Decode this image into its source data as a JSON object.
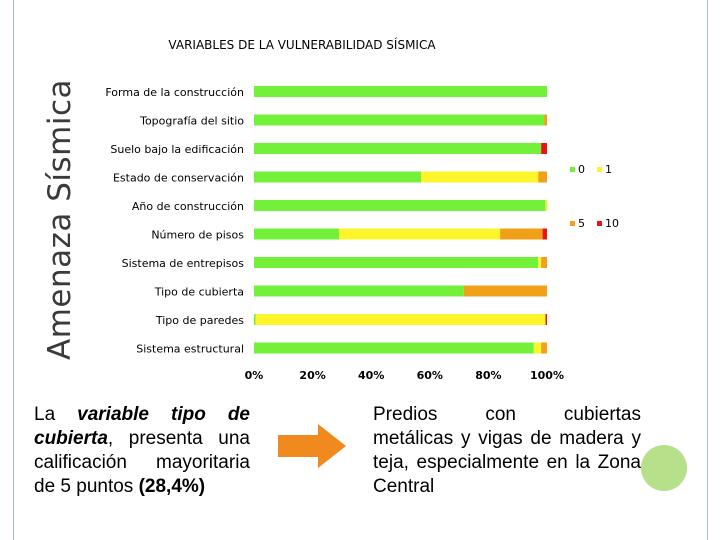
{
  "side_title": "Amenaza Sísmica",
  "left_note": {
    "p1": "La ",
    "p2": "variable tipo de cubierta",
    "p3": ", presenta una calificación mayoritaria de 5 puntos ",
    "p4": "(28,4%)"
  },
  "right_note": "Predios con cubiertas metálicas y vigas de madera y teja, especialmente en la Zona Central",
  "colors": {
    "s0": "#73f03a",
    "s1": "#fcf52a",
    "s5": "#f0a019",
    "s10": "#e81515",
    "arrow": "#f08a1e",
    "decoration": "#b6e08a"
  },
  "chart_data": {
    "type": "bar",
    "orientation": "horizontal",
    "stacked": "percent",
    "title": "VARIABLES DE LA VULNERABILIDAD SÍSMICA",
    "categories": [
      "Forma de la construcción",
      "Topografía del sitio",
      "Suelo bajo la edificación",
      "Estado de conservación",
      "Año de construcción",
      "Número de pisos",
      "Sistema de entrepisos",
      "Tipo de cubierta",
      "Tipo de paredes",
      "Sistema estructural"
    ],
    "series": [
      {
        "name": "0",
        "values": [
          100,
          99,
          98,
          57,
          99.5,
          29,
          97,
          71.6,
          0.5,
          95.5
        ]
      },
      {
        "name": "1",
        "values": [
          0,
          0,
          0,
          40,
          0.5,
          55,
          1,
          0,
          99,
          2.5
        ]
      },
      {
        "name": "5",
        "values": [
          0,
          1,
          0,
          3,
          0,
          14.5,
          2,
          28.4,
          0,
          2
        ]
      },
      {
        "name": "10",
        "values": [
          0,
          0,
          2,
          0,
          0,
          1.5,
          0,
          0,
          0.5,
          0
        ]
      }
    ],
    "xlim": [
      0,
      100
    ],
    "xticks": [
      "0%",
      "20%",
      "40%",
      "60%",
      "80%",
      "100%"
    ],
    "legend": {
      "placement": "right",
      "entries": [
        "0",
        "1",
        "5",
        "10"
      ]
    }
  }
}
